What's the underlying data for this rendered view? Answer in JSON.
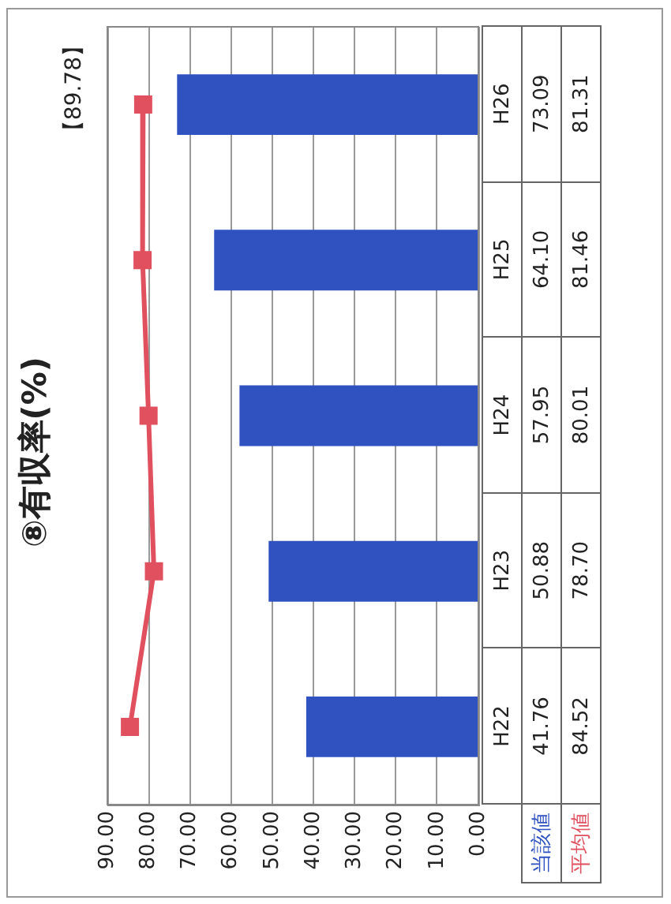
{
  "chart_data": {
    "type": "bar",
    "orientation": "horizontal",
    "title": "⑧有収率(%)",
    "annotations": [
      "【89.78】"
    ],
    "categories": [
      "H26",
      "H25",
      "H24",
      "H23",
      "H22"
    ],
    "series": [
      {
        "name": "当該値",
        "type": "bar",
        "color": "#2f52c0",
        "values": [
          73.09,
          64.1,
          57.95,
          50.88,
          41.76
        ],
        "value_labels": [
          "73.09",
          "64.10",
          "57.95",
          "50.88",
          "41.76"
        ]
      },
      {
        "name": "平均値",
        "type": "line",
        "color": "#e0505e",
        "values": [
          81.31,
          81.46,
          80.01,
          78.7,
          84.52
        ],
        "value_labels": [
          "81.31",
          "81.46",
          "80.01",
          "78.70",
          "84.52"
        ]
      }
    ],
    "xlim": [
      90,
      0
    ],
    "xticks": [
      {
        "value": 90,
        "label": "90.00"
      },
      {
        "value": 80,
        "label": "80.00"
      },
      {
        "value": 70,
        "label": "70.00"
      },
      {
        "value": 60,
        "label": "60.00"
      },
      {
        "value": 50,
        "label": "50.00"
      },
      {
        "value": 40,
        "label": "40.00"
      },
      {
        "value": 30,
        "label": "30.00"
      },
      {
        "value": 20,
        "label": "20.00"
      },
      {
        "value": 10,
        "label": "10.00"
      },
      {
        "value": 0,
        "label": "0.00"
      }
    ],
    "grid": "x",
    "marker": "square",
    "line_style": "solid",
    "tick_labels": "x"
  }
}
